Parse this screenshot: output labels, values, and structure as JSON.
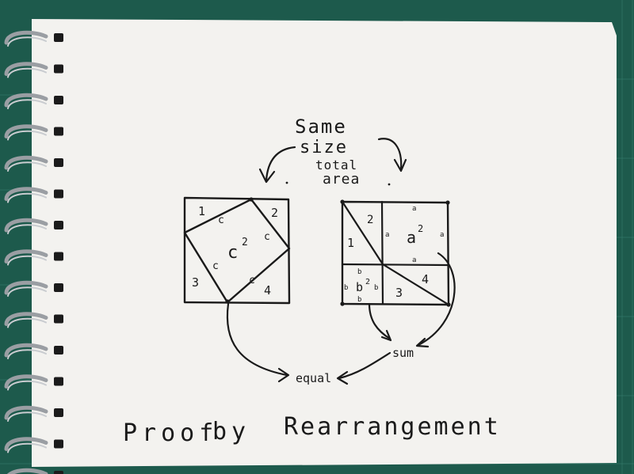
{
  "colors": {
    "mat": "#1d5a4c",
    "mat_grid": "#3f8a78",
    "paper": "#f3f2ef",
    "ink": "#1a1a1a",
    "ring": "#9a9ea3"
  },
  "note": {
    "title_words": [
      "Same",
      "size",
      "total",
      "area"
    ],
    "left_square": {
      "region_labels": [
        "1",
        "2",
        "3",
        "4"
      ],
      "side_labels": [
        "c",
        "c",
        "c",
        "c"
      ],
      "center": "c",
      "center_exp": "2"
    },
    "right_square": {
      "region_labels": [
        "2",
        "1",
        "4",
        "3"
      ],
      "a_label": "a",
      "a_exp": "2",
      "b_label": "b",
      "b_exp": "2",
      "small_a": "a",
      "small_b": "b"
    },
    "sum_label": "sum",
    "equal_label": "equal",
    "proof_words": [
      "Proof",
      "by",
      "Rearrangement"
    ]
  }
}
